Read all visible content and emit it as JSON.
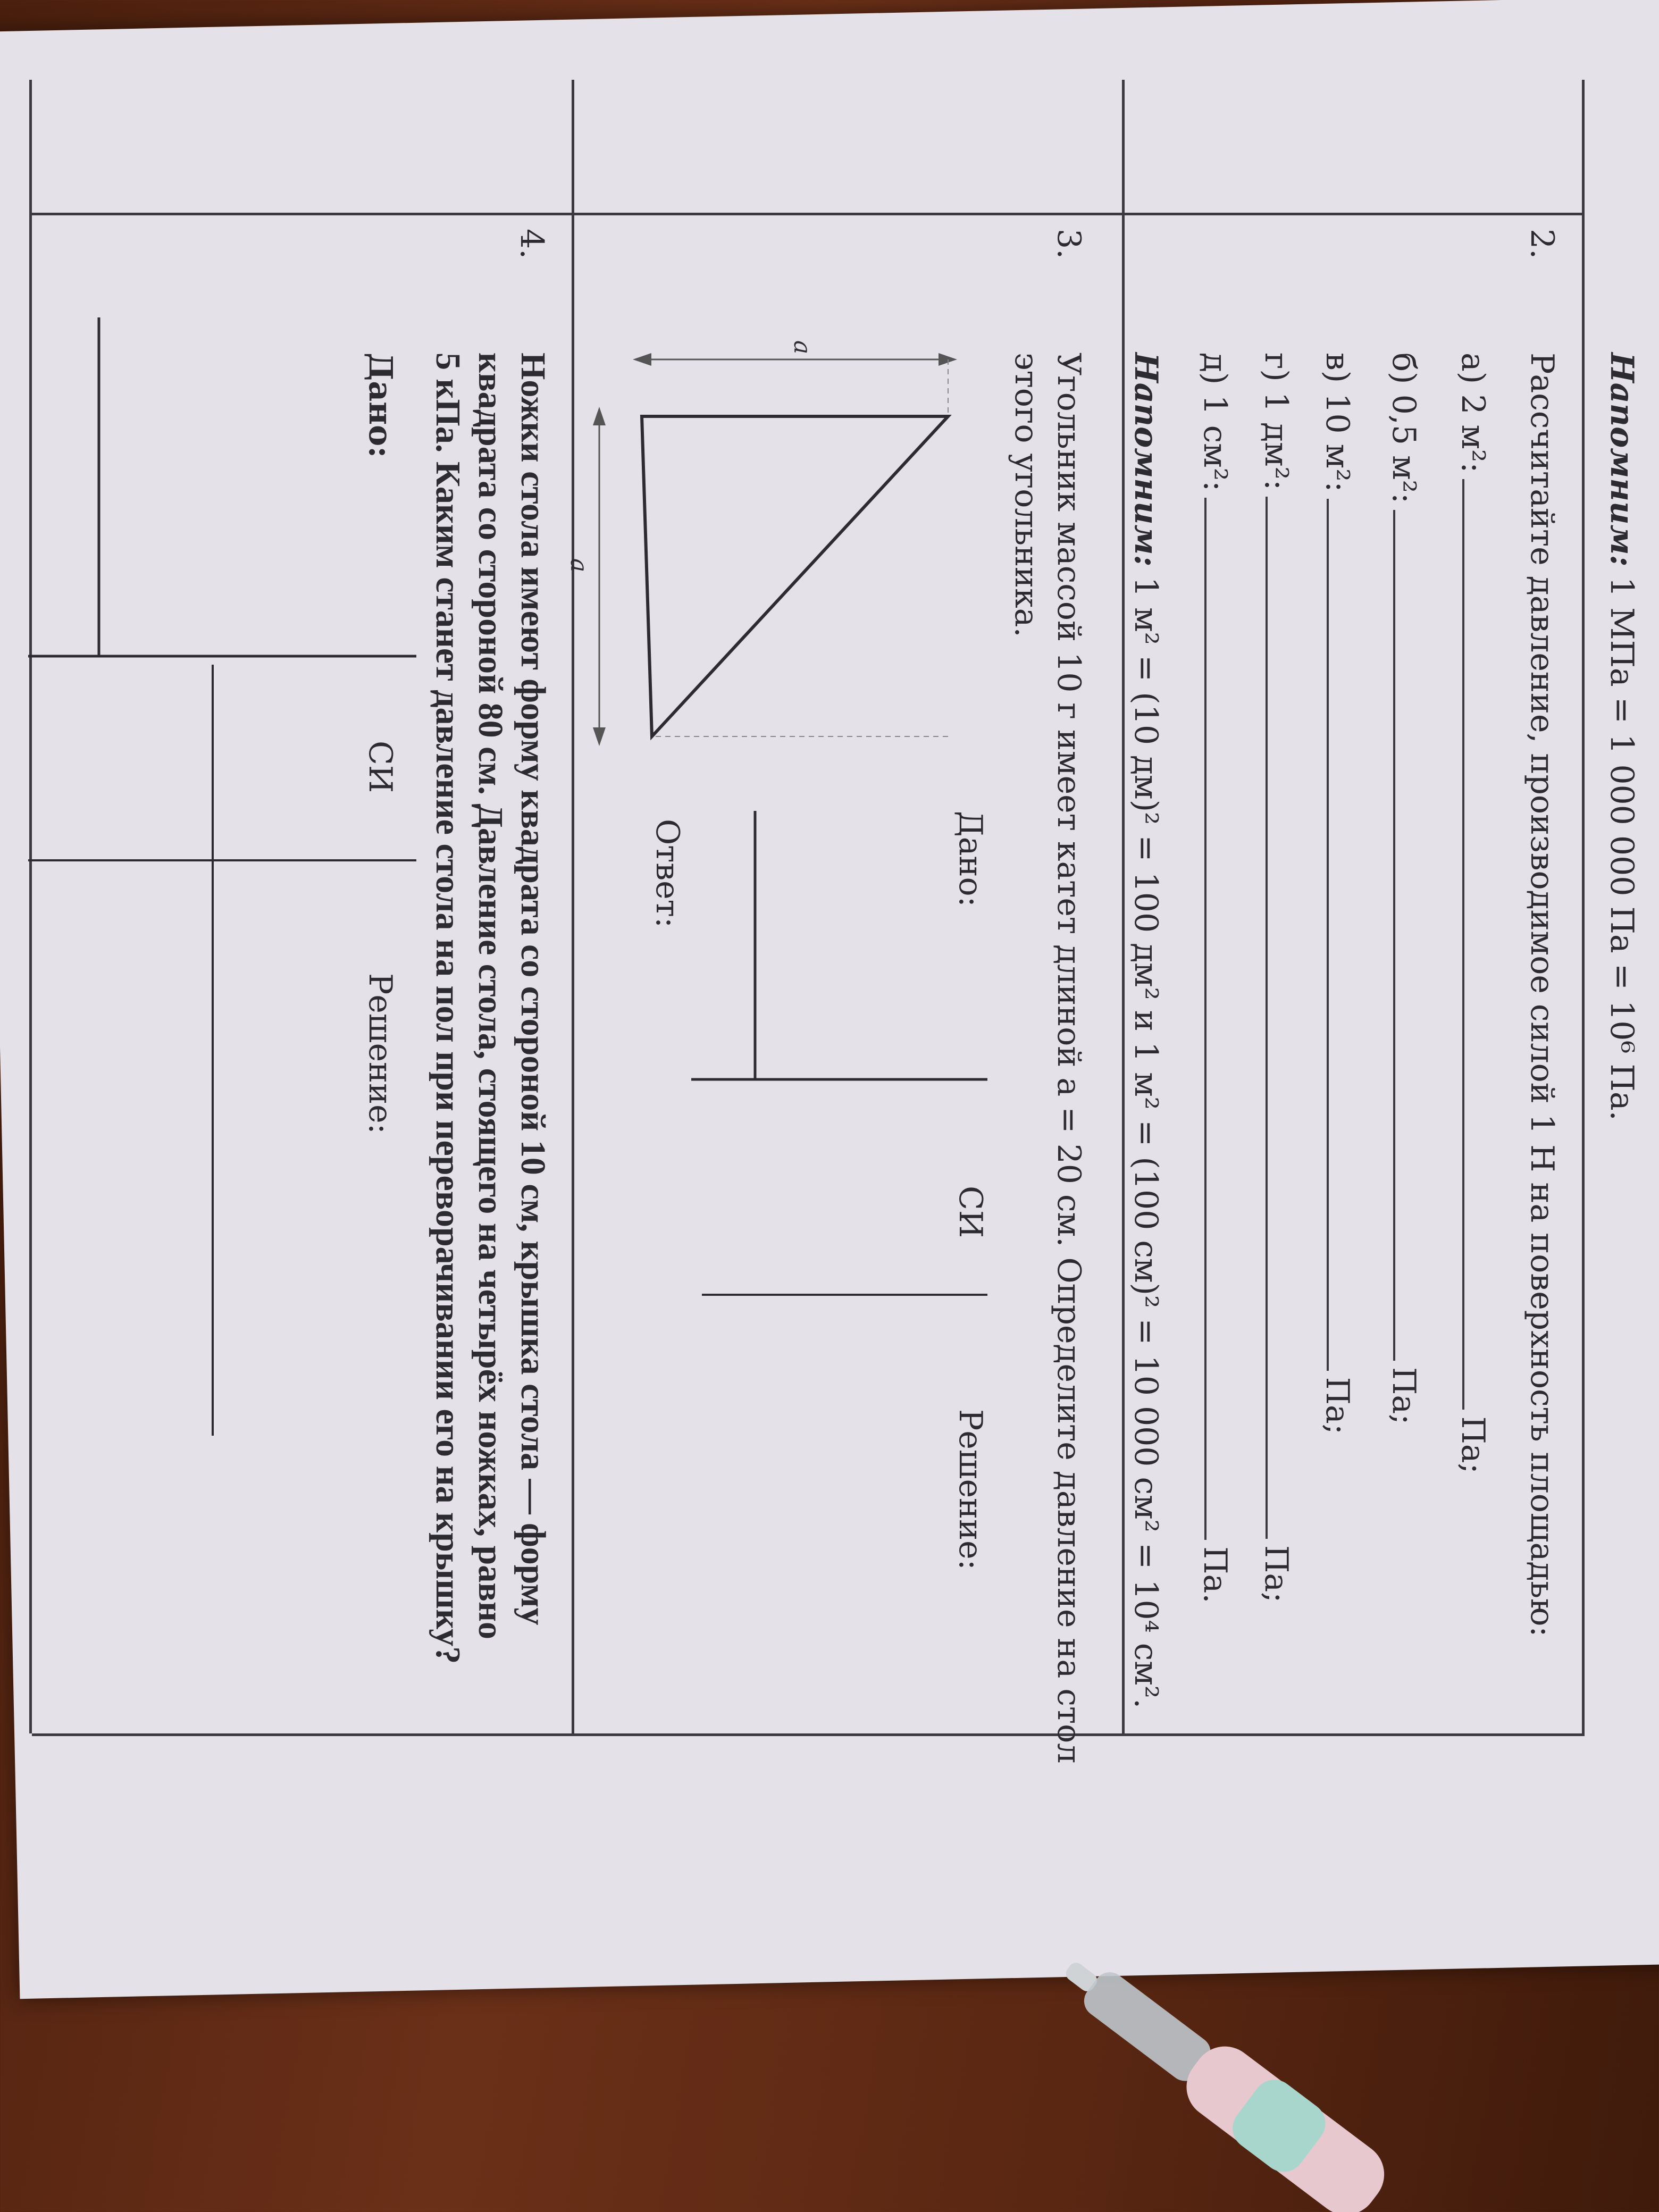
{
  "reminder_1": {
    "label": "Напомним:",
    "text": "1 МПа = 1 000 000 Па = 10⁶ Па."
  },
  "task2": {
    "number": "2.",
    "text": "Рассчитайте давление, производимое силой 1 Н на поверхность площадью:",
    "items": [
      {
        "label": "а) 2 м²:",
        "unit": "Па;"
      },
      {
        "label": "б) 0,5 м²:",
        "unit": "Па;"
      },
      {
        "label": "в) 10 м²:",
        "unit": "Па;"
      },
      {
        "label": "г) 1 дм²:",
        "unit": "Па;"
      },
      {
        "label": "д) 1 см²:",
        "unit": "Па."
      }
    ],
    "reminder_label": "Напомним:",
    "reminder_text": "1 м² = (10 дм)² = 100 дм² и 1 м² = (100 см)² = 10 000 см² = 10⁴ см²."
  },
  "task3": {
    "number": "3.",
    "text_line1": "Угольник массой 10 г имеет катет длиной a = 20 см. Определите давление на стол",
    "text_line2": "этого угольника.",
    "figure_label_top": "a",
    "figure_label_bottom": "a",
    "given": "Дано:",
    "si": "СИ",
    "solution": "Решение:",
    "answer": "Ответ:"
  },
  "task4": {
    "number": "4.",
    "text_line1": "Ножки стола имеют форму квадрата со стороной 10 см, крышка стола — форму",
    "text_line2": "квадрата со стороной 80 см. Давление стола, стоящего на четырёх ножках, равно",
    "text_line3": "5 кПа. Каким станет давление стола на пол при переворачивании его на крышку?",
    "given": "Дано:",
    "si": "СИ",
    "solution": "Решение:"
  },
  "colors": {
    "paper": "#e4e1e8",
    "ink": "#2b2b30",
    "table": "#5a2712"
  }
}
